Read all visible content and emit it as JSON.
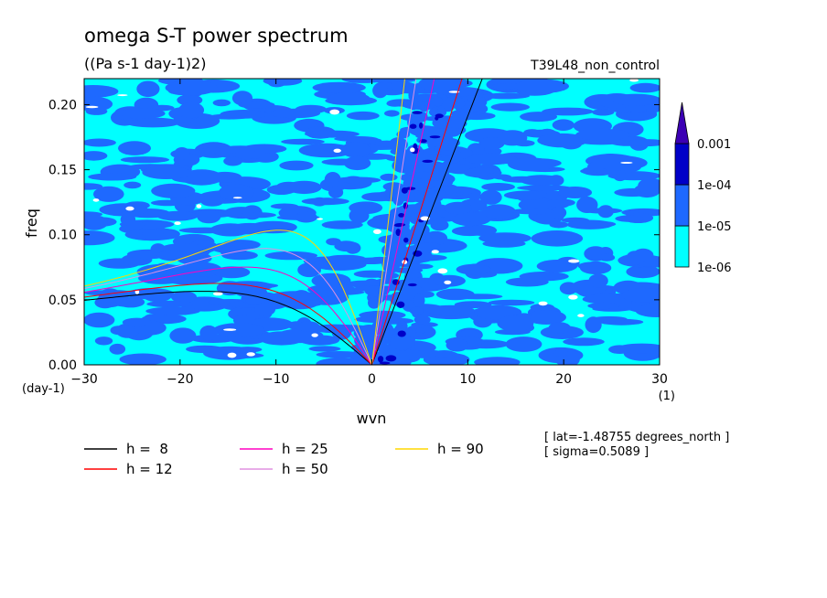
{
  "chart_data": {
    "type": "heatmap",
    "title": "omega S-T power spectrum",
    "subtitle": "((Pa s-1 day-1)2)",
    "run_label": "T39L48_non_control",
    "xlabel": "wvn",
    "ylabel": "freq",
    "x_unit": "(1)",
    "y_unit": "(day-1)",
    "xlim": [
      -30,
      30
    ],
    "ylim": [
      0,
      0.22
    ],
    "xticks": [
      -30,
      -20,
      -10,
      0,
      10,
      20,
      30
    ],
    "xtick_labels": [
      "-30",
      "-20",
      "-10",
      "0",
      "10",
      "20",
      "30"
    ],
    "yticks": [
      0,
      0.05,
      0.1,
      0.15,
      0.2
    ],
    "ytick_labels": [
      "0.00",
      "0.05",
      "0.10",
      "0.15",
      "0.20"
    ],
    "colorbar": {
      "levels": [
        "1e-06",
        "1e-05",
        "1e-04",
        "0.001"
      ],
      "colors": [
        "#00ffff",
        "#1e69ff",
        "#0000c8",
        "#3c00b4"
      ],
      "extend": "max"
    },
    "curves": [
      {
        "name": "h =  8",
        "h": 8,
        "color": "#000000"
      },
      {
        "name": "h = 12",
        "h": 12,
        "color": "#ff0000"
      },
      {
        "name": "h = 25",
        "h": 25,
        "color": "#ff00c0"
      },
      {
        "name": "h = 50",
        "h": 50,
        "color": "#e090e0"
      },
      {
        "name": "h = 90",
        "h": 90,
        "color": "#ffd700"
      }
    ],
    "annotations": [
      "[ lat=-1.48755 degrees_north ]",
      "[ sigma=0.5089 ]"
    ]
  }
}
